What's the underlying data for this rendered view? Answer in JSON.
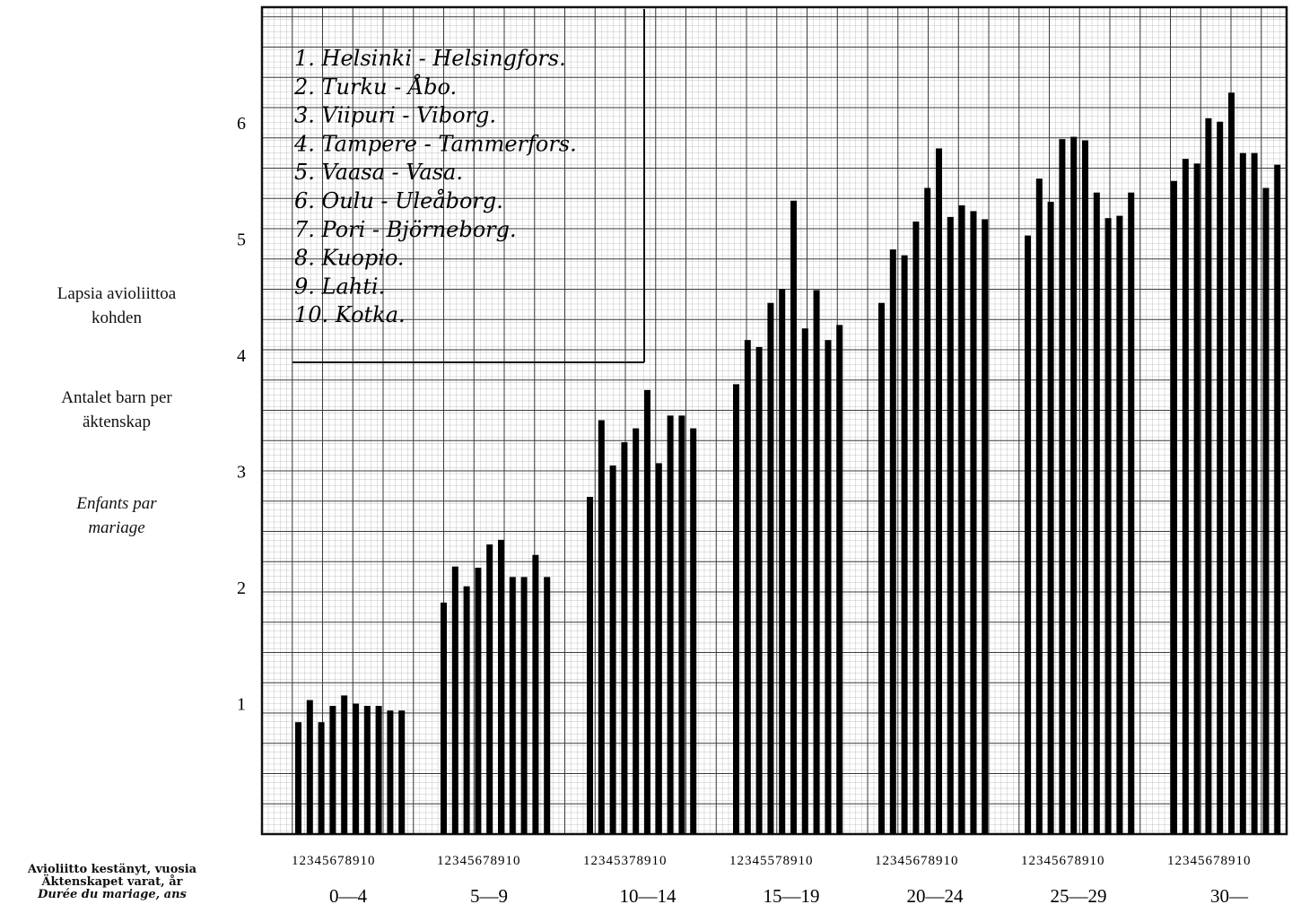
{
  "chart_data": {
    "type": "bar",
    "ylabel_fi": "Lapsia avioliittoa kohden",
    "ylabel_fi_line1": "Lapsia avioliittoa",
    "ylabel_fi_line2": "kohden",
    "ylabel_sv_line1": "Antalet barn per",
    "ylabel_sv_line2": "äktenskap",
    "ylabel_fr_line1": "Enfants par",
    "ylabel_fr_line2": "mariage",
    "xlabel_fi": "Avioliitto kestänyt, vuosia",
    "xlabel_sv": "Äktenskapet varat, år",
    "xlabel_fr": "Durée du mariage, ans",
    "ylim": [
      0,
      6.6
    ],
    "yticks": [
      1,
      2,
      3,
      4,
      5,
      6
    ],
    "grid": true,
    "legend_position": "top-left",
    "legend": [
      "1. Helsinki - Helsingfors.",
      "2. Turku - Åbo.",
      "3. Viipuri - Viborg.",
      "4. Tampere - Tammerfors.",
      "5. Vaasa - Vasa.",
      "6. Oulu - Uleåborg.",
      "7. Pori - Björneborg.",
      "8. Kuopio.",
      "9. Lahti.",
      "10. Kotka."
    ],
    "bar_indices": [
      "1",
      "2",
      "3",
      "4",
      "5",
      "6",
      "7",
      "8",
      "9",
      "10"
    ],
    "group_index_labels": [
      "12345678910",
      "12345678910",
      "12345378910",
      "12345578910",
      "12345678910",
      "12345678910",
      "12345678910"
    ],
    "categories": [
      "0—4",
      "5—9",
      "10—14",
      "15—19",
      "20—24",
      "25—29",
      "30—"
    ],
    "series": [
      {
        "name": "1. Helsinki - Helsingfors",
        "values": [
          0.84,
          1.87,
          2.78,
          3.75,
          4.45,
          5.03,
          5.5
        ]
      },
      {
        "name": "2. Turku - Åbo",
        "values": [
          1.03,
          2.18,
          3.44,
          4.13,
          4.91,
          5.52,
          5.69
        ]
      },
      {
        "name": "3. Viipuri - Viborg",
        "values": [
          0.84,
          2.01,
          3.05,
          4.07,
          4.86,
          5.32,
          5.65
        ]
      },
      {
        "name": "4. Tampere - Tammerfors",
        "values": [
          0.98,
          2.17,
          3.25,
          4.45,
          5.15,
          5.86,
          6.04
        ]
      },
      {
        "name": "5. Vaasa - Vasa",
        "values": [
          1.07,
          2.37,
          3.37,
          4.57,
          5.44,
          5.88,
          6.01
        ]
      },
      {
        "name": "6. Oulu - Uleåborg",
        "values": [
          1.0,
          2.41,
          3.7,
          5.33,
          5.78,
          5.85,
          6.26
        ]
      },
      {
        "name": "7. Pori - Björneborg",
        "values": [
          0.98,
          2.09,
          3.07,
          4.23,
          5.19,
          5.4,
          5.74
        ]
      },
      {
        "name": "8. Kuopio",
        "values": [
          0.98,
          2.09,
          3.48,
          4.56,
          5.29,
          5.18,
          5.74
        ]
      },
      {
        "name": "9. Lahti",
        "values": [
          0.94,
          2.28,
          3.48,
          4.13,
          5.24,
          5.2,
          5.44
        ]
      },
      {
        "name": "10. Kotka",
        "values": [
          0.94,
          2.09,
          3.37,
          4.26,
          5.17,
          5.4,
          5.64
        ]
      }
    ]
  }
}
